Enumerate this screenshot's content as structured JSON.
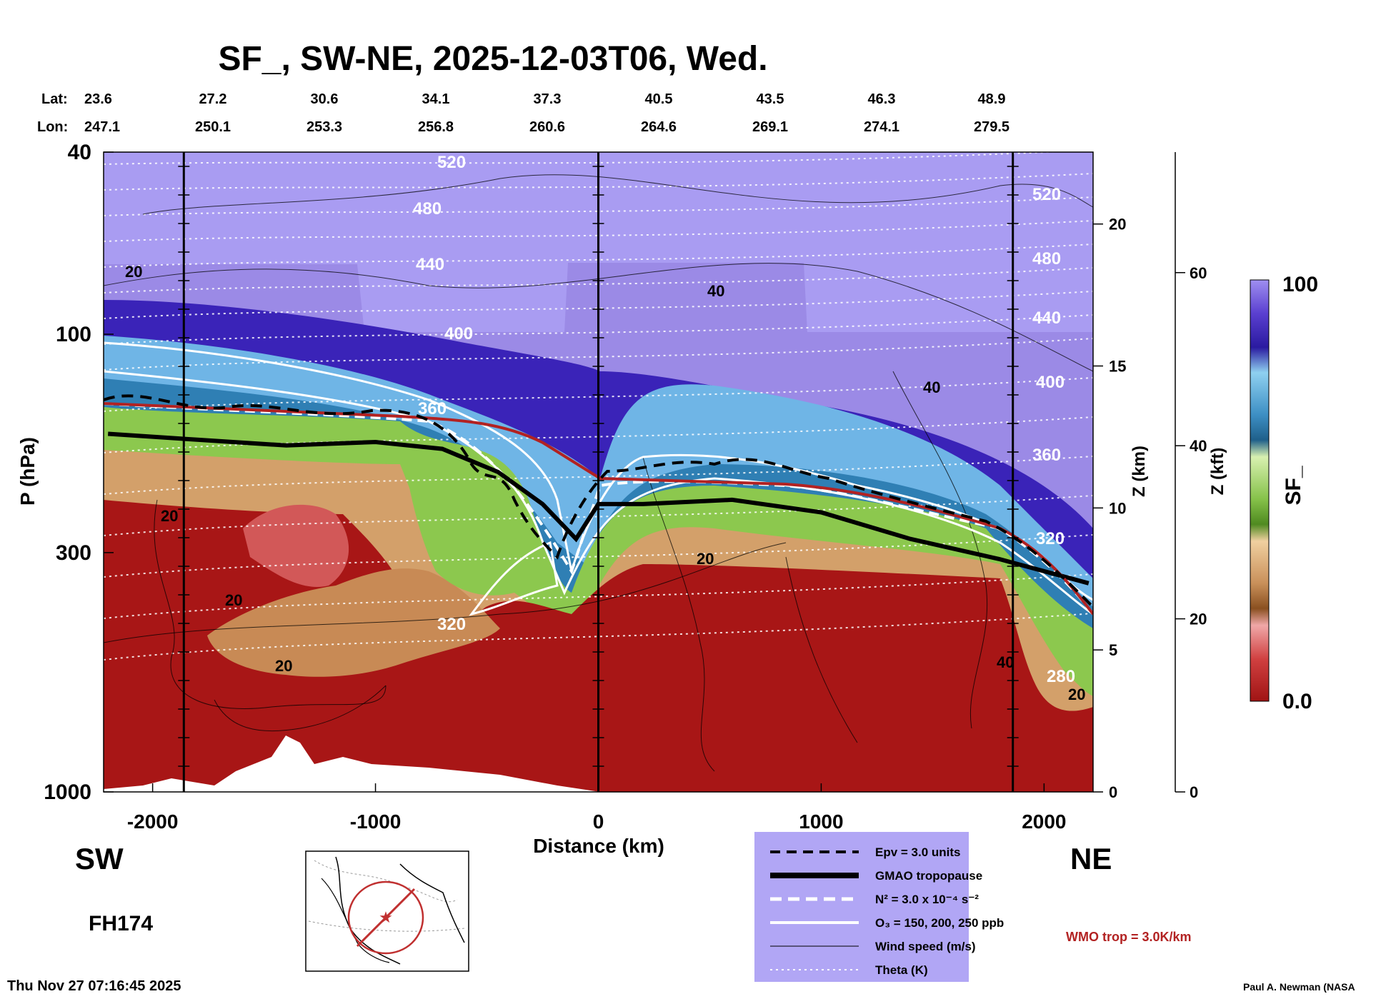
{
  "chart_data": {
    "type": "heatmap",
    "title": "SF_, SW-NE, 2025-12-03T06, Wed.",
    "xlabel": "Distance (km)",
    "ylabel": "P (hPa)",
    "z_km_label": "Z (km)",
    "z_kft_label": "Z (kft)",
    "colorbar_label": "SF_",
    "x_ticks": [
      -2000,
      -1000,
      0,
      1000,
      2000
    ],
    "xlim": [
      -2220,
      2220
    ],
    "ylim": [
      1000,
      40
    ],
    "p_ticks": [
      40,
      100,
      300,
      1000
    ],
    "z_km_ticks": [
      0,
      5,
      10,
      15,
      20
    ],
    "z_kft_ticks": [
      0,
      20,
      40,
      60
    ],
    "colorbar_range": [
      0.0,
      100
    ],
    "colorbar_tick_labels": [
      "100",
      "0.0"
    ],
    "lat_label": "Lat:",
    "lon_label": "Lon:",
    "lat": [
      "23.6",
      "27.2",
      "30.6",
      "34.1",
      "37.3",
      "40.5",
      "43.5",
      "46.3",
      "48.9"
    ],
    "lon": [
      "247.1",
      "250.1",
      "253.3",
      "256.8",
      "260.6",
      "264.6",
      "269.1",
      "274.1",
      "279.5"
    ],
    "direction_left": "SW",
    "direction_right": "NE",
    "forecast_hour": "FH174",
    "timestamp": "Thu Nov 27 07:16:45 2025",
    "credit": "Paul A. Newman (NASA",
    "wmo_note": "WMO trop = 3.0K/km",
    "theta_labels": [
      "520",
      "480",
      "440",
      "400",
      "360",
      "320",
      "280"
    ],
    "wind_labels": [
      "20",
      "40"
    ],
    "tropopause_pressure_hpa": {
      "x": [
        -2200,
        -1800,
        -1400,
        -1000,
        -700,
        -450,
        -250,
        -100,
        0,
        200,
        600,
        1000,
        1400,
        1800,
        2200
      ],
      "p": [
        165,
        170,
        175,
        172,
        178,
        200,
        235,
        280,
        235,
        235,
        230,
        245,
        280,
        310,
        350
      ]
    },
    "legend": [
      {
        "label": "Epv = 3.0 units",
        "style": "dashed-black"
      },
      {
        "label": "GMAO tropopause",
        "style": "thick-black"
      },
      {
        "label": "N² = 3.0 x 10⁻⁴ s⁻²",
        "style": "dashed-white"
      },
      {
        "label": "O₃ = 150, 200, 250 ppb",
        "style": "solid-white"
      },
      {
        "label": "Wind speed (m/s)",
        "style": "thin-black"
      },
      {
        "label": "Theta (K)",
        "style": "dotted-white"
      }
    ],
    "colors": {
      "stratosphere": "#a99cf2",
      "high": "#4a2fc4",
      "mid_blue": "#3d8fc4",
      "green": "#86c24a",
      "tan": "#c9905a",
      "low": "#a01414",
      "legend_bg": "#b1a6f5",
      "wmo_red": "#b22222"
    }
  }
}
